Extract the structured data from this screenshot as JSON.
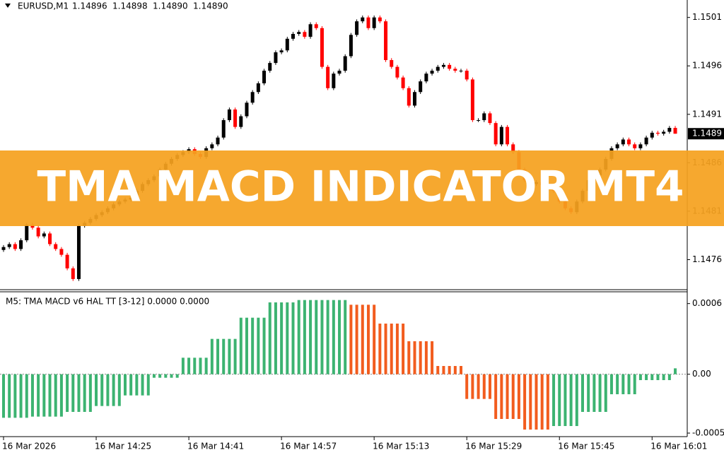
{
  "banner": "TMA MACD INDICATOR MT4",
  "chart_data": [
    {
      "type": "candlestick",
      "title": "EURUSD,M1",
      "header_values": [
        "1.14896",
        "1.14898",
        "1.14890",
        "1.14890"
      ],
      "current_price": 1.1489,
      "up_color": "#000000",
      "down_color": "#ff0000",
      "ylim": [
        1.14729,
        1.15028
      ],
      "yticks": [
        1.1501,
        1.1496,
        1.1491,
        1.1486,
        1.1481,
        1.1476
      ],
      "open": [
        1.1477,
        1.14773,
        1.14776,
        1.14771,
        1.1478,
        1.14796,
        1.14793,
        1.14784,
        1.14787,
        1.14776,
        1.14771,
        1.14765,
        1.14751,
        1.1474,
        1.14795,
        1.14798,
        1.14802,
        1.14806,
        1.14809,
        1.14813,
        1.14817,
        1.1482,
        1.14822,
        1.14824,
        1.14831,
        1.14838,
        1.14842,
        1.14846,
        1.14853,
        1.14859,
        1.14864,
        1.14868,
        1.14871,
        1.14874,
        1.14869,
        1.14866,
        1.14875,
        1.14879,
        1.14886,
        1.14904,
        1.14915,
        1.14897,
        1.14908,
        1.14922,
        1.14933,
        1.14942,
        1.14955,
        1.14963,
        1.14974,
        1.14976,
        1.14988,
        1.14993,
        1.14995,
        1.1499,
        1.15003,
        1.14999,
        1.14959,
        1.14937,
        1.14952,
        1.14955,
        1.1497,
        1.14992,
        1.15006,
        1.1501,
        1.14999,
        1.1501,
        1.15006,
        1.14966,
        1.14959,
        1.14948,
        1.14937,
        1.14919,
        1.14933,
        1.14944,
        1.14952,
        1.14955,
        1.14959,
        1.14961,
        1.14957,
        1.14955,
        1.14955,
        1.14946,
        1.14904,
        1.14904,
        1.14911,
        1.14901,
        1.14879,
        1.14897,
        1.14879,
        1.14871,
        1.14853,
        1.14842,
        1.14838,
        1.1484,
        1.14837,
        1.14835,
        1.14831,
        1.1482,
        1.14813,
        1.14809,
        1.1482,
        1.14831,
        1.14842,
        1.14847,
        1.14853,
        1.14864,
        1.14875,
        1.14879,
        1.14884,
        1.14879,
        1.14875,
        1.14879,
        1.14886,
        1.14891,
        1.1489,
        1.14892,
        1.14896
      ],
      "high": [
        1.14775,
        1.14778,
        1.14778,
        1.14782,
        1.14798,
        1.14798,
        1.14795,
        1.14789,
        1.14789,
        1.14778,
        1.14773,
        1.14767,
        1.14753,
        1.14797,
        1.148,
        1.14804,
        1.14808,
        1.14811,
        1.14815,
        1.14819,
        1.14822,
        1.14824,
        1.14826,
        1.14833,
        1.1484,
        1.14844,
        1.14848,
        1.14855,
        1.14861,
        1.14866,
        1.1487,
        1.14873,
        1.14876,
        1.14876,
        1.14871,
        1.14877,
        1.14881,
        1.14888,
        1.14906,
        1.14917,
        1.14917,
        1.1491,
        1.14924,
        1.14935,
        1.14944,
        1.14957,
        1.14965,
        1.14976,
        1.14978,
        1.1499,
        1.14995,
        1.14997,
        1.14997,
        1.15005,
        1.15005,
        1.15001,
        1.14961,
        1.14954,
        1.14957,
        1.14972,
        1.14994,
        1.15008,
        1.15012,
        1.15012,
        1.15012,
        1.15012,
        1.15008,
        1.14968,
        1.14961,
        1.1495,
        1.14939,
        1.14935,
        1.14946,
        1.14954,
        1.14957,
        1.14961,
        1.14963,
        1.14963,
        1.14959,
        1.14957,
        1.14957,
        1.14948,
        1.14906,
        1.14913,
        1.14913,
        1.14903,
        1.14899,
        1.14899,
        1.14881,
        1.14873,
        1.14855,
        1.14844,
        1.14842,
        1.14842,
        1.14839,
        1.14837,
        1.14833,
        1.14822,
        1.14815,
        1.14822,
        1.14833,
        1.14844,
        1.14849,
        1.14855,
        1.14866,
        1.14877,
        1.14881,
        1.14886,
        1.14886,
        1.14881,
        1.14881,
        1.14888,
        1.14893,
        1.14893,
        1.14894,
        1.14898,
        1.14898
      ],
      "low": [
        1.14768,
        1.14771,
        1.14769,
        1.14769,
        1.14778,
        1.14791,
        1.14782,
        1.14782,
        1.14774,
        1.14769,
        1.14763,
        1.14749,
        1.14738,
        1.14738,
        1.14793,
        1.14796,
        1.148,
        1.14804,
        1.14807,
        1.14811,
        1.14815,
        1.14818,
        1.1482,
        1.14822,
        1.14829,
        1.14836,
        1.1484,
        1.14844,
        1.14851,
        1.14857,
        1.14862,
        1.14866,
        1.14869,
        1.14867,
        1.14864,
        1.14864,
        1.14873,
        1.14877,
        1.14884,
        1.14902,
        1.14895,
        1.14895,
        1.14906,
        1.1492,
        1.14931,
        1.1494,
        1.14953,
        1.14961,
        1.14972,
        1.14974,
        1.14986,
        1.14991,
        1.14988,
        1.14988,
        1.14997,
        1.14957,
        1.14935,
        1.14935,
        1.1495,
        1.14953,
        1.14968,
        1.1499,
        1.15004,
        1.14997,
        1.14997,
        1.15004,
        1.14964,
        1.14957,
        1.14946,
        1.14935,
        1.14917,
        1.14917,
        1.14931,
        1.14942,
        1.1495,
        1.14953,
        1.14957,
        1.14955,
        1.14953,
        1.14953,
        1.14944,
        1.14902,
        1.14902,
        1.14902,
        1.14899,
        1.14877,
        1.14877,
        1.14877,
        1.14869,
        1.14851,
        1.1484,
        1.14836,
        1.14836,
        1.14835,
        1.14833,
        1.14829,
        1.14818,
        1.14811,
        1.14807,
        1.14807,
        1.14818,
        1.14829,
        1.1484,
        1.14845,
        1.14851,
        1.14862,
        1.14873,
        1.14877,
        1.14877,
        1.14873,
        1.14873,
        1.14877,
        1.14884,
        1.14888,
        1.14888,
        1.1489,
        1.1489
      ],
      "close": [
        1.14773,
        1.14776,
        1.14771,
        1.1478,
        1.14796,
        1.14793,
        1.14784,
        1.14787,
        1.14776,
        1.14771,
        1.14765,
        1.14751,
        1.1474,
        1.14795,
        1.14798,
        1.14802,
        1.14806,
        1.14809,
        1.14813,
        1.14817,
        1.1482,
        1.14822,
        1.14824,
        1.14831,
        1.14838,
        1.14842,
        1.14846,
        1.14853,
        1.14859,
        1.14864,
        1.14868,
        1.14871,
        1.14874,
        1.14869,
        1.14866,
        1.14875,
        1.14879,
        1.14886,
        1.14904,
        1.14915,
        1.14897,
        1.14908,
        1.14922,
        1.14933,
        1.14942,
        1.14955,
        1.14963,
        1.14974,
        1.14976,
        1.14988,
        1.14993,
        1.14995,
        1.1499,
        1.15003,
        1.14999,
        1.14959,
        1.14937,
        1.14952,
        1.14955,
        1.1497,
        1.14992,
        1.15006,
        1.1501,
        1.14999,
        1.1501,
        1.15006,
        1.14966,
        1.14959,
        1.14948,
        1.14937,
        1.14919,
        1.14933,
        1.14944,
        1.14952,
        1.14955,
        1.14959,
        1.14961,
        1.14957,
        1.14955,
        1.14955,
        1.14946,
        1.14904,
        1.14904,
        1.14911,
        1.14901,
        1.14879,
        1.14897,
        1.14879,
        1.14871,
        1.14853,
        1.14842,
        1.14838,
        1.1484,
        1.14837,
        1.14835,
        1.14831,
        1.1482,
        1.14813,
        1.14809,
        1.1482,
        1.14831,
        1.14842,
        1.14847,
        1.14853,
        1.14864,
        1.14875,
        1.14879,
        1.14884,
        1.14879,
        1.14875,
        1.14879,
        1.14886,
        1.14891,
        1.1489,
        1.14892,
        1.14896,
        1.1489
      ]
    },
    {
      "type": "histogram",
      "title": "M5: TMA MACD v6 HAL TT [3-12] 0.0000 0.0000",
      "up_color": "#3cb371",
      "down_color": "#f25c1e",
      "ylim": [
        -0.00053,
        0.0007
      ],
      "yticks": [
        0.0006,
        {
          "value": 0,
          "label": "0.00"
        },
        -0.0005
      ],
      "categories": [
        "16 Mar 2026",
        null,
        null,
        null,
        null,
        null,
        null,
        null,
        null,
        null,
        null,
        null,
        null,
        null,
        null,
        null,
        "16 Mar 14:25",
        null,
        null,
        null,
        null,
        null,
        null,
        null,
        null,
        null,
        null,
        null,
        null,
        null,
        null,
        null,
        "16 Mar 14:41",
        null,
        null,
        null,
        null,
        null,
        null,
        null,
        null,
        null,
        null,
        null,
        null,
        null,
        null,
        null,
        "16 Mar 14:57",
        null,
        null,
        null,
        null,
        null,
        null,
        null,
        null,
        null,
        null,
        null,
        null,
        null,
        null,
        null,
        "16 Mar 15:13",
        null,
        null,
        null,
        null,
        null,
        null,
        null,
        null,
        null,
        null,
        null,
        null,
        null,
        null,
        null,
        "16 Mar 15:29",
        null,
        null,
        null,
        null,
        null,
        null,
        null,
        null,
        null,
        null,
        null,
        null,
        null,
        null,
        null,
        "16 Mar 15:45",
        null,
        null,
        null,
        null,
        null,
        null,
        null,
        null,
        null,
        null,
        null,
        null,
        null,
        null,
        null,
        "16 Mar 16:01",
        null,
        null,
        null,
        null
      ],
      "values": [
        -0.00037,
        -0.00037,
        -0.00037,
        -0.00037,
        -0.00037,
        -0.00036,
        -0.00036,
        -0.00036,
        -0.00036,
        -0.00036,
        -0.00036,
        -0.00032,
        -0.00032,
        -0.00032,
        -0.00032,
        -0.00032,
        -0.00027,
        -0.00027,
        -0.00027,
        -0.00027,
        -0.00027,
        -0.00018,
        -0.00018,
        -0.00018,
        -0.00018,
        -0.00018,
        -3e-05,
        -3e-05,
        -3e-05,
        -3e-05,
        -3e-05,
        0.00014,
        0.00014,
        0.00014,
        0.00014,
        0.00014,
        0.0003,
        0.0003,
        0.0003,
        0.0003,
        0.0003,
        0.00048,
        0.00048,
        0.00048,
        0.00048,
        0.00048,
        0.00061,
        0.00061,
        0.00061,
        0.00061,
        0.00061,
        0.00063,
        0.00063,
        0.00063,
        0.00063,
        0.00063,
        0.00063,
        0.00063,
        0.00063,
        0.00063,
        0.00059,
        0.00059,
        0.00059,
        0.00059,
        0.00059,
        0.00043,
        0.00043,
        0.00043,
        0.00043,
        0.00043,
        0.00028,
        0.00028,
        0.00028,
        0.00028,
        0.00028,
        7e-05,
        7e-05,
        7e-05,
        7e-05,
        7e-05,
        -0.00021,
        -0.00021,
        -0.00021,
        -0.00021,
        -0.00021,
        -0.00038,
        -0.00038,
        -0.00038,
        -0.00038,
        -0.00038,
        -0.00047,
        -0.00047,
        -0.00047,
        -0.00047,
        -0.00047,
        -0.00044,
        -0.00044,
        -0.00044,
        -0.00044,
        -0.00044,
        -0.00032,
        -0.00032,
        -0.00032,
        -0.00032,
        -0.00032,
        -0.00017,
        -0.00017,
        -0.00017,
        -0.00017,
        -0.00017,
        -5e-05,
        -5e-05,
        -5e-05,
        -5e-05,
        -5e-05,
        -5e-05,
        5e-05
      ]
    }
  ]
}
